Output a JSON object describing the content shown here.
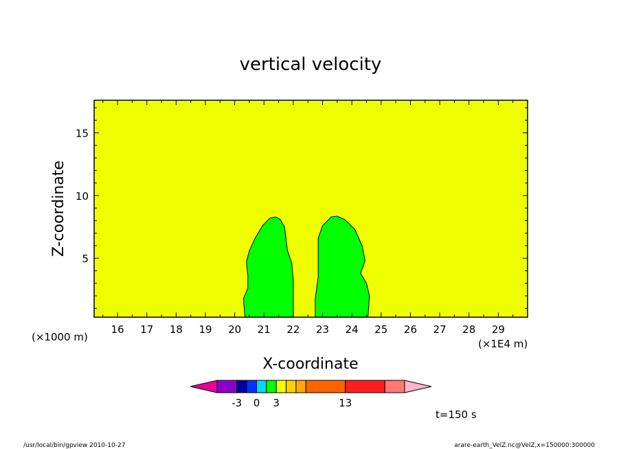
{
  "chart_data": {
    "type": "contour",
    "title": "vertical velocity",
    "xlabel": "X-coordinate",
    "ylabel": "Z-coordinate",
    "x_unit_left": "(×1000 m)",
    "x_unit_right": "(×1E4 m)",
    "xlim": [
      15.2,
      30.0
    ],
    "ylim": [
      0.3,
      17.6
    ],
    "x_ticks": [
      16,
      17,
      18,
      19,
      20,
      21,
      22,
      23,
      24,
      25,
      26,
      27,
      28,
      29
    ],
    "x_tick_labels": [
      "16",
      "17",
      "18",
      "19",
      "20",
      "21",
      "22",
      "23",
      "24",
      "25",
      "26",
      "27",
      "28",
      "29"
    ],
    "y_ticks": [
      5,
      10,
      15
    ],
    "y_tick_labels": [
      "5",
      "10",
      "15"
    ],
    "background_color": "#f0ff00",
    "regions": [
      {
        "fill": "#00ff00",
        "points": [
          [
            20.35,
            0.3
          ],
          [
            20.3,
            1.8
          ],
          [
            20.45,
            2.6
          ],
          [
            20.45,
            3.6
          ],
          [
            20.4,
            4.7
          ],
          [
            20.5,
            5.6
          ],
          [
            20.7,
            6.6
          ],
          [
            20.95,
            7.6
          ],
          [
            21.2,
            8.2
          ],
          [
            21.4,
            8.3
          ],
          [
            21.55,
            8.1
          ],
          [
            21.7,
            7.5
          ],
          [
            21.75,
            6.6
          ],
          [
            21.8,
            5.6
          ],
          [
            21.95,
            4.6
          ],
          [
            22.0,
            3.2
          ],
          [
            22.0,
            1.6
          ],
          [
            22.0,
            0.3
          ]
        ]
      },
      {
        "fill": "#00ff00",
        "points": [
          [
            22.75,
            0.3
          ],
          [
            22.75,
            1.8
          ],
          [
            22.85,
            3.5
          ],
          [
            22.85,
            5.0
          ],
          [
            22.85,
            6.6
          ],
          [
            23.0,
            7.6
          ],
          [
            23.3,
            8.3
          ],
          [
            23.5,
            8.35
          ],
          [
            23.75,
            8.1
          ],
          [
            24.1,
            7.3
          ],
          [
            24.35,
            6.0
          ],
          [
            24.45,
            4.8
          ],
          [
            24.3,
            3.8
          ],
          [
            24.5,
            3.0
          ],
          [
            24.6,
            2.0
          ],
          [
            24.55,
            0.3
          ]
        ]
      }
    ],
    "colorbar": {
      "colors": [
        "#e6009a",
        "#8a00c8",
        "#0000a0",
        "#0032ff",
        "#00d7ff",
        "#00ff00",
        "#f0ff00",
        "#ffd200",
        "#ffaa00",
        "#ff6400",
        "#ff1e1e",
        "#ff7878",
        "#ffb4c8"
      ],
      "widths": [
        1,
        1,
        0.5,
        0.5,
        0.5,
        0.5,
        0.5,
        0.5,
        0.5,
        2,
        2,
        1,
        1
      ],
      "tick_labels": [
        "-3",
        "0",
        "3",
        "13"
      ],
      "tick_label_positions": [
        2,
        4,
        6,
        10
      ]
    },
    "annotation": "t=150 s"
  },
  "footer": {
    "left": "/usr/local/bin/gpview  2010-10-27",
    "right": "arare-earth_VelZ.nc@VelZ,x=150000:300000"
  }
}
